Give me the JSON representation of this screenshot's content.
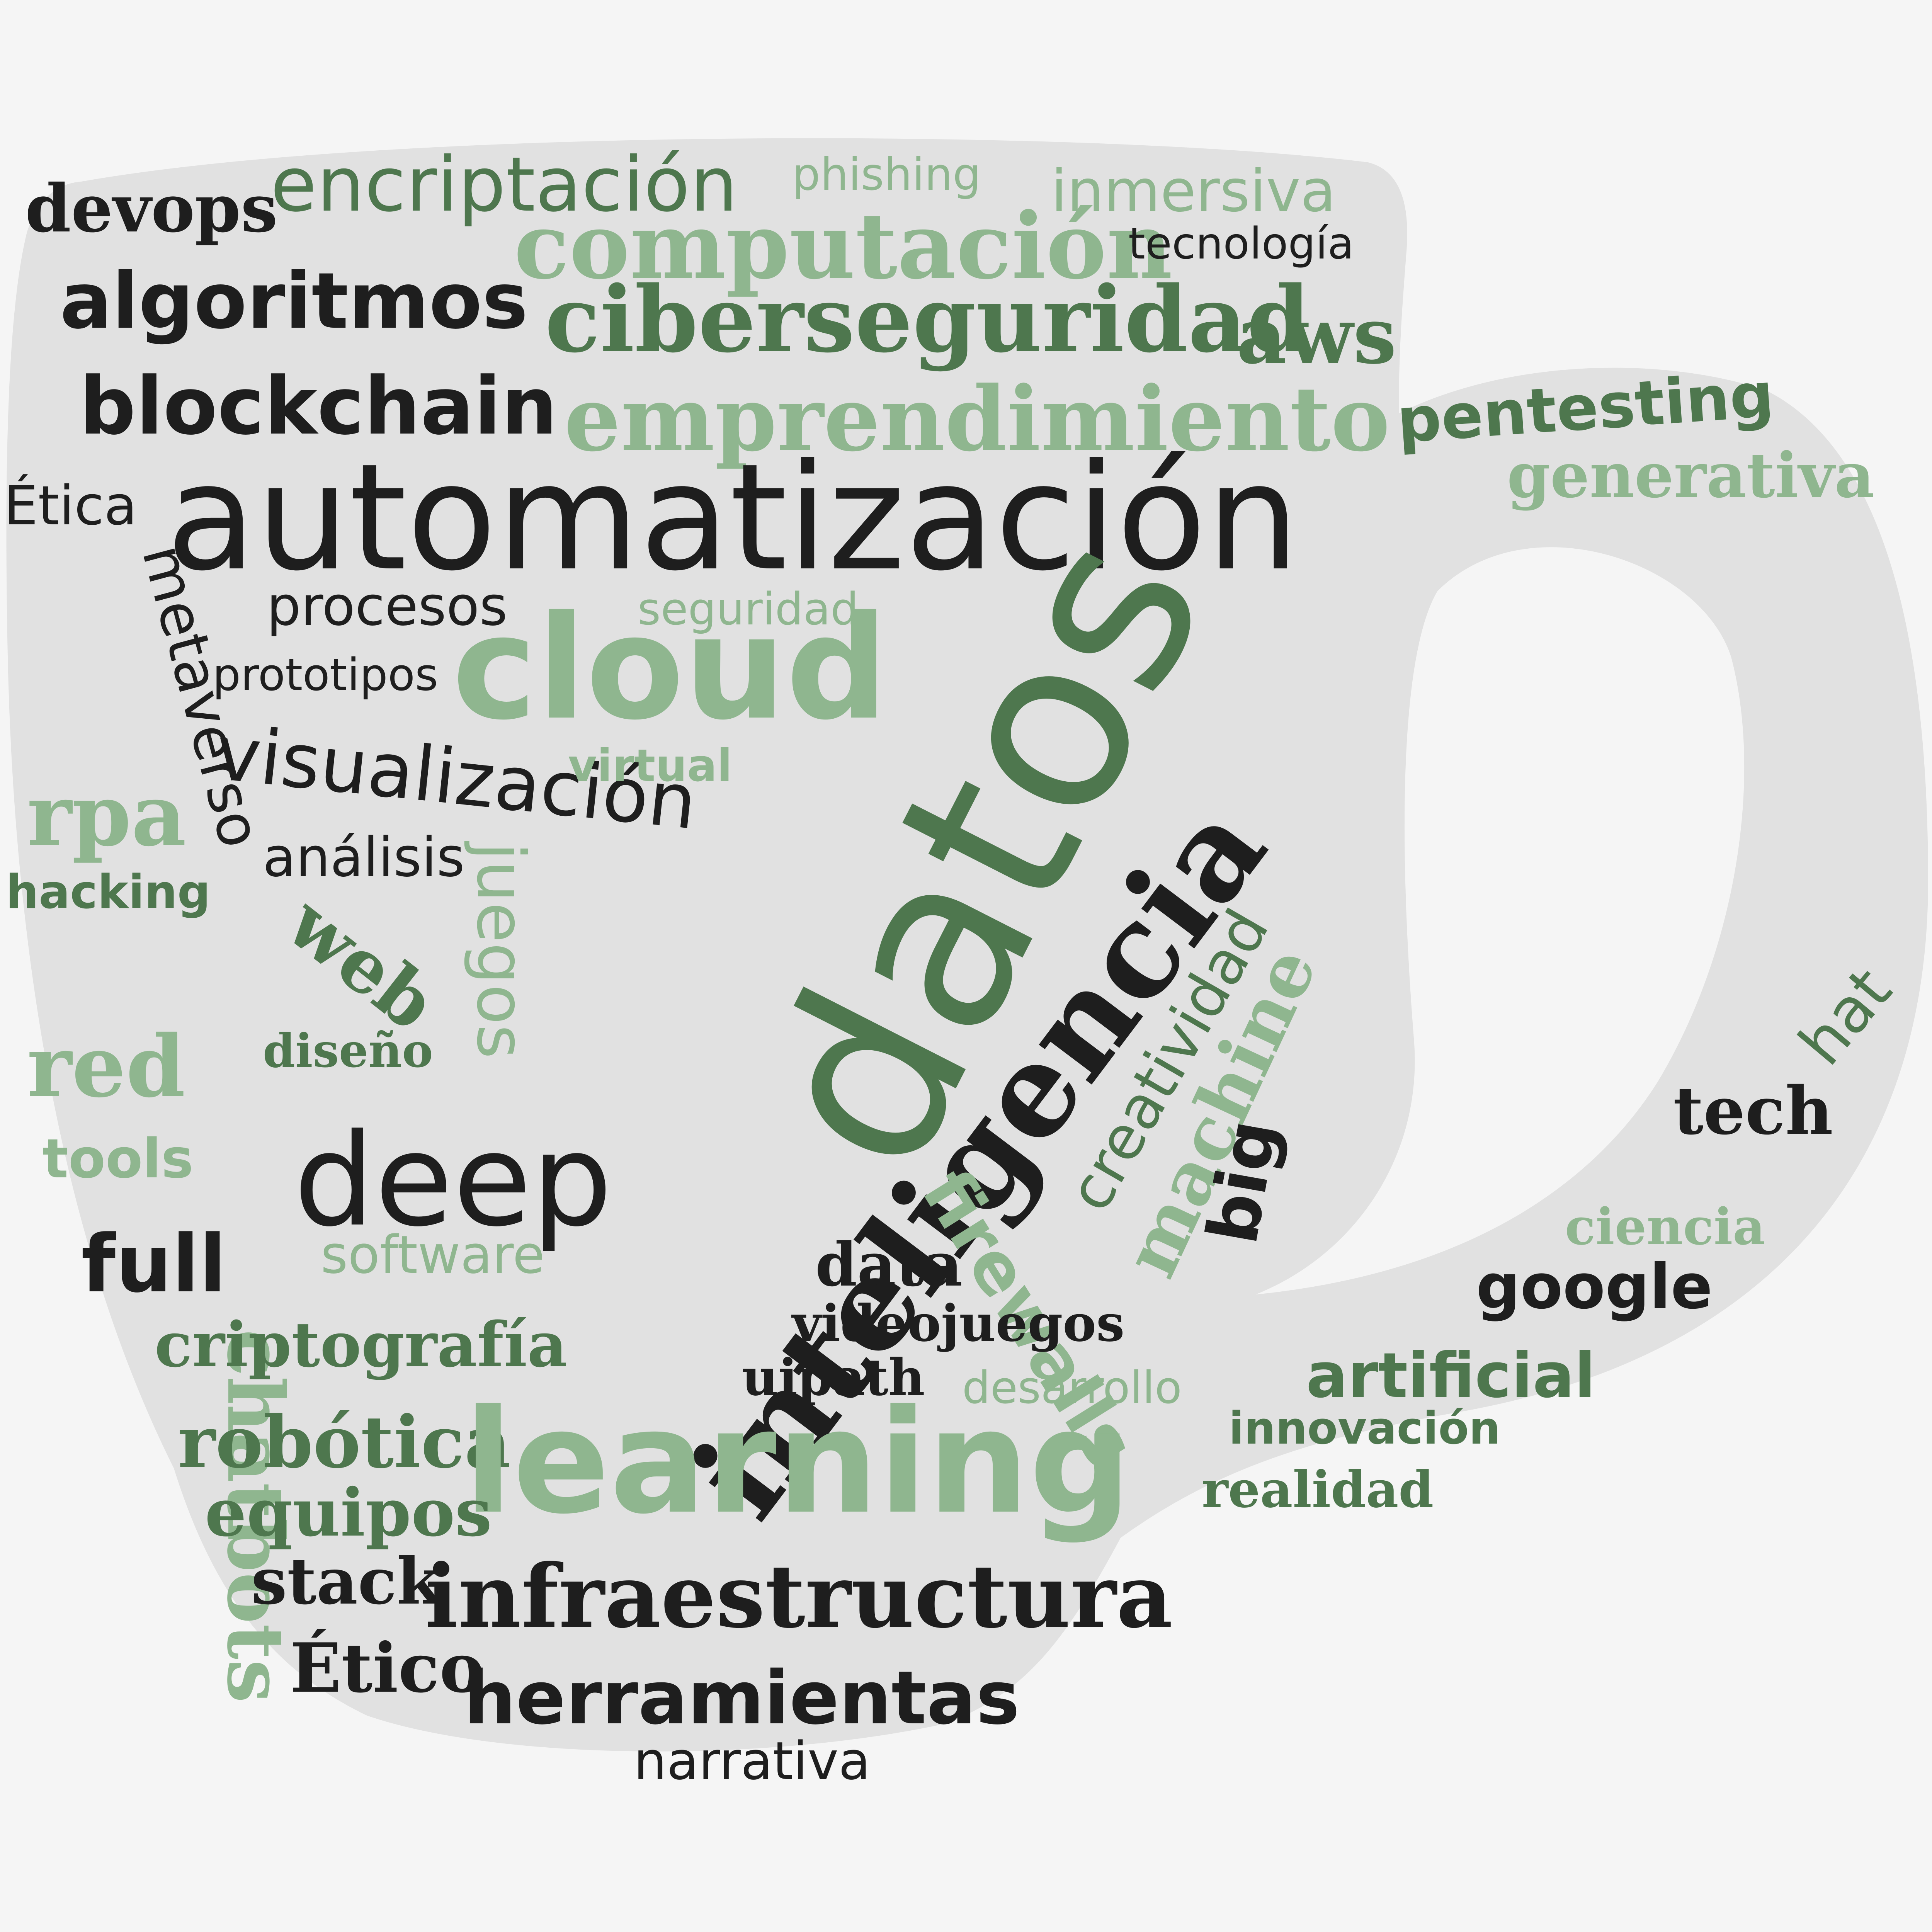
{
  "colors": {
    "background": "#f5f5f5",
    "mug": "#e1e1e1",
    "dark": "#1e1e1e",
    "green": "#4e774e",
    "light_green": "#8fb68f"
  },
  "words": {
    "devops": "devops",
    "encriptacion": "encriptación",
    "phishing": "phishing",
    "inmersiva": "inmersiva",
    "computacion": "computación",
    "tecnologia": "tecnología",
    "algoritmos": "algoritmos",
    "ciberseguridad": "ciberseguridad",
    "aws": "aws",
    "blockchain": "blockchain",
    "emprendimiento": "emprendimiento",
    "pentesting": "pentesting",
    "generativa": "generativa",
    "etica": "Ética",
    "automatizacion": "automatización",
    "metaverso": "metaverso",
    "procesos": "procesos",
    "seguridad": "seguridad",
    "prototipos": "prototipos",
    "cloud": "cloud",
    "visualizacion": "visualización",
    "virtual": "virtual",
    "rpa": "rpa",
    "analisis": "análisis",
    "hacking": "hacking",
    "datos": "datos",
    "inteligencia": "inteligencia",
    "web": "web",
    "chatbots": "chatbots",
    "juegos": "juegos",
    "creatividad": "creatividad",
    "machine": "machine",
    "hat": "hat",
    "red": "red",
    "diseno": "diseño",
    "tools": "tools",
    "deep": "deep",
    "big": "big",
    "tech": "tech",
    "firewalls": "firewalls",
    "ciencia": "ciencia",
    "full": "full",
    "software": "software",
    "data": "data",
    "google": "google",
    "videojuegos": "videojuegos",
    "criptografia": "criptografía",
    "uipath": "uipath",
    "artificial": "artificial",
    "desarrollo": "desarrollo",
    "robotica": "robótica",
    "learning": "learning",
    "innovacion": "innovación",
    "realidad": "realidad",
    "equipos": "equipos",
    "stack": "stack",
    "infraestructura": "infraestructura",
    "etico": "Ético",
    "herramientas": "herramientas",
    "narrativa": "narrativa"
  }
}
